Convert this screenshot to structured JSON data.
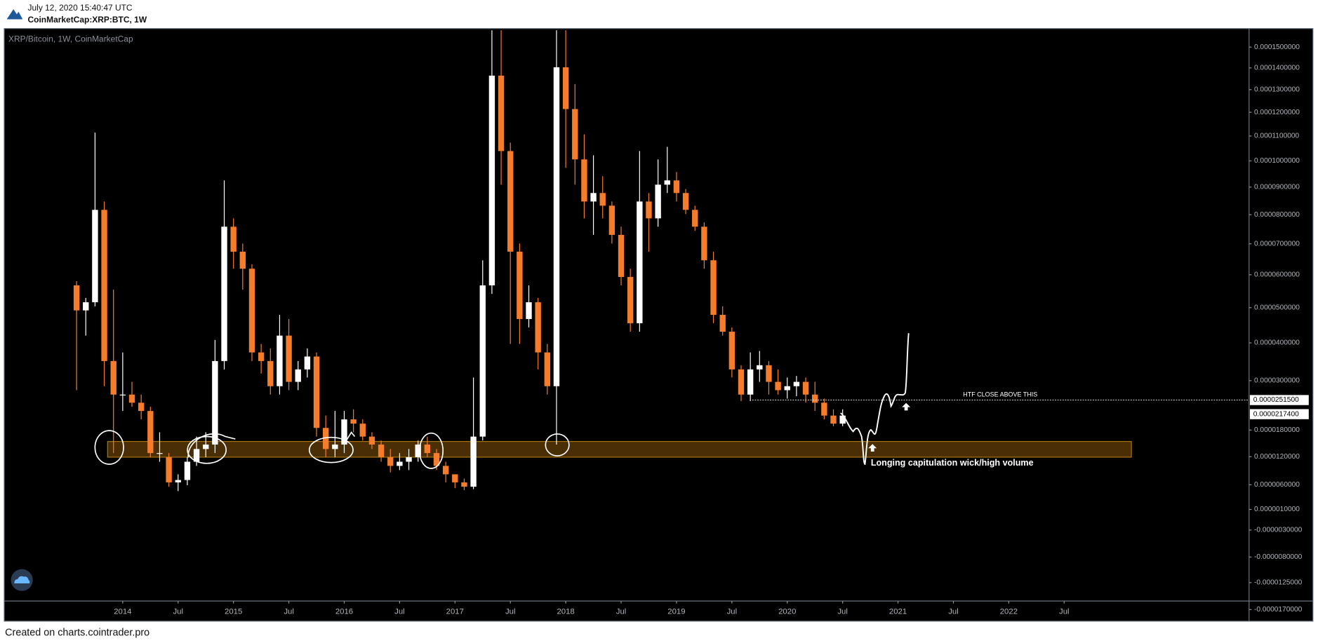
{
  "header": {
    "timestamp": "July 12, 2020 15:40:47 UTC",
    "symbol": "CoinMarketCap:XRP:BTC, 1W"
  },
  "chart_data": {
    "type": "candlestick",
    "title": "XRP/Bitcoin, 1W, CoinMarketCap",
    "x": [
      "2013-08",
      "2013-09",
      "2013-10",
      "2013-11",
      "2013-12",
      "2014-01",
      "2014-02",
      "2014-03",
      "2014-04",
      "2014-05",
      "2014-06",
      "2014-07",
      "2014-08",
      "2014-09",
      "2014-10",
      "2014-11",
      "2014-12",
      "2015-01",
      "2015-02",
      "2015-03",
      "2015-04",
      "2015-05",
      "2015-06",
      "2015-07",
      "2015-08",
      "2015-09",
      "2015-10",
      "2015-11",
      "2015-12",
      "2016-01",
      "2016-02",
      "2016-03",
      "2016-04",
      "2016-05",
      "2016-06",
      "2016-07",
      "2016-08",
      "2016-09",
      "2016-10",
      "2016-11",
      "2016-12",
      "2017-01",
      "2017-02",
      "2017-03",
      "2017-04",
      "2017-05",
      "2017-06",
      "2017-07",
      "2017-08",
      "2017-09",
      "2017-10",
      "2017-11",
      "2017-12",
      "2018-01",
      "2018-02",
      "2018-03",
      "2018-04",
      "2018-05",
      "2018-06",
      "2018-07",
      "2018-08",
      "2018-09",
      "2018-10",
      "2018-11",
      "2018-12",
      "2019-01",
      "2019-02",
      "2019-03",
      "2019-04",
      "2019-05",
      "2019-06",
      "2019-07",
      "2019-08",
      "2019-09",
      "2019-10",
      "2019-11",
      "2019-12",
      "2020-01",
      "2020-02",
      "2020-03",
      "2020-04",
      "2020-05",
      "2020-06",
      "2020-07"
    ],
    "open": [
      5.67e-05,
      4.92e-05,
      5.16e-05,
      8.17e-05,
      3.51e-05,
      2.65e-05,
      2.65e-05,
      2.45e-05,
      2.25e-05,
      1.28e-05,
      1.19e-05,
      6.5e-06,
      7e-06,
      1.09e-05,
      1.37e-05,
      1.47e-05,
      3.51e-05,
      7.58e-05,
      6.74e-05,
      6.19e-05,
      3.74e-05,
      3.51e-05,
      2.86e-05,
      4.2e-05,
      2.97e-05,
      3.29e-05,
      3.63e-05,
      1.85e-05,
      1.37e-05,
      1.47e-05,
      2.05e-05,
      1.95e-05,
      1.65e-05,
      1.47e-05,
      1.19e-05,
      1e-05,
      1.09e-05,
      1.19e-05,
      1.47e-05,
      1.28e-05,
      1e-05,
      8.2e-06,
      6.5e-06,
      5.6e-06,
      1.65e-05,
      5.67e-05,
      0.0001364,
      0.0001039,
      6.74e-05,
      4.67e-05,
      5.16e-05,
      3.74e-05,
      2.86e-05,
      0.0001403,
      0.0001214,
      0.0001006,
      8.47e-05,
      8.78e-05,
      8.32e-05,
      7.3e-05,
      5.93e-05,
      4.55e-05,
      8.47e-05,
      7.87e-05,
      9.09e-05,
      9.25e-05,
      8.78e-05,
      8.17e-05,
      7.58e-05,
      6.46e-05,
      4.79e-05,
      4.31e-05,
      3.29e-05,
      2.65e-05,
      3.29e-05,
      3.4e-05,
      2.97e-05,
      2.76e-05,
      2.86e-05,
      2.97e-05,
      2.65e-05,
      2.45e-05,
      2.14e-05,
      1.95e-05
    ],
    "high": [
      5.8e-05,
      5.29e-05,
      0.0001114,
      8.47e-05,
      5.54e-05,
      3.74e-05,
      2.97e-05,
      2.65e-05,
      2.35e-05,
      1.75e-05,
      1.28e-05,
      8.2e-06,
      1.19e-05,
      1.65e-05,
      1.75e-05,
      4.08e-05,
      9.25e-05,
      7.87e-05,
      7.01e-05,
      6.33e-05,
      3.97e-05,
      3.85e-05,
      4.79e-05,
      4.67e-05,
      3.51e-05,
      3.85e-05,
      3.74e-05,
      2.14e-05,
      2.25e-05,
      2.25e-05,
      2.29e-05,
      2.05e-05,
      1.75e-05,
      1.56e-05,
      1.37e-05,
      1.28e-05,
      1.37e-05,
      1.56e-05,
      1.65e-05,
      1.37e-05,
      1.09e-05,
      8.2e-06,
      7.3e-06,
      3.08e-05,
      6.46e-05,
      0.0001584,
      0.0001584,
      0.0001073,
      7.01e-05,
      5.67e-05,
      5.29e-05,
      3.97e-05,
      0.0001584,
      0.0001584,
      0.0001325,
      0.0001107,
      0.0001022,
      9.41e-05,
      8.47e-05,
      7.58e-05,
      6.19e-05,
      0.0001039,
      8.78e-05,
      0.0001006,
      0.0001056,
      9.57e-05,
      8.93e-05,
      8.32e-05,
      7.73e-05,
      6.74e-05,
      5.04e-05,
      4.43e-05,
      3.4e-05,
      3.74e-05,
      3.78e-05,
      3.51e-05,
      3.29e-05,
      3.08e-05,
      3.12e-05,
      3.08e-05,
      2.97e-05,
      2.55e-05,
      2.29e-05,
      2.29e-05
    ],
    "low": [
      2.76e-05,
      4.2e-05,
      5.04e-05,
      2.86e-05,
      1.28e-05,
      2.25e-05,
      2.35e-05,
      2.05e-05,
      1.19e-05,
      1.09e-05,
      5.6e-06,
      4.7e-06,
      5.9e-06,
      1e-05,
      1.19e-05,
      1.28e-05,
      3.29e-05,
      6.19e-05,
      5.54e-05,
      3.51e-05,
      3.18e-05,
      2.65e-05,
      2.65e-05,
      2.76e-05,
      2.76e-05,
      3.08e-05,
      1.65e-05,
      1.19e-05,
      1.19e-05,
      1.28e-05,
      1.75e-05,
      1.56e-05,
      1.37e-05,
      1.09e-05,
      8.6e-06,
      9.1e-06,
      9.1e-06,
      1.09e-05,
      1.19e-05,
      9.1e-06,
      6.5e-06,
      5.3e-06,
      4.9e-06,
      5.1e-06,
      1.56e-05,
      5.41e-05,
      9.09e-05,
      3.97e-05,
      3.97e-05,
      4.43e-05,
      3.29e-05,
      2.65e-05,
      1.47e-05,
      9.73e-05,
      9.09e-05,
      7.87e-05,
      7.3e-05,
      7.87e-05,
      7.01e-05,
      5.67e-05,
      4.31e-05,
      4.31e-05,
      6.74e-05,
      7.58e-05,
      8.78e-05,
      8.47e-05,
      8.02e-05,
      7.44e-05,
      6.19e-05,
      4.55e-05,
      4.2e-05,
      3.08e-05,
      2.49e-05,
      2.49e-05,
      2.97e-05,
      2.65e-05,
      2.65e-05,
      2.55e-05,
      2.61e-05,
      2.45e-05,
      2.25e-05,
      2.05e-05,
      1.89e-05,
      1.89e-05
    ],
    "close": [
      4.92e-05,
      5.16e-05,
      8.17e-05,
      3.51e-05,
      2.65e-05,
      2.65e-05,
      2.45e-05,
      2.25e-05,
      1.28e-05,
      1.28e-05,
      6.5e-06,
      7e-06,
      1.09e-05,
      1.37e-05,
      1.47e-05,
      3.51e-05,
      7.58e-05,
      6.74e-05,
      6.19e-05,
      3.74e-05,
      3.51e-05,
      2.86e-05,
      4.2e-05,
      2.97e-05,
      3.29e-05,
      3.63e-05,
      1.85e-05,
      1.37e-05,
      1.47e-05,
      2.05e-05,
      1.95e-05,
      1.65e-05,
      1.47e-05,
      1.19e-05,
      1e-05,
      1.09e-05,
      1.19e-05,
      1.47e-05,
      1.28e-05,
      1e-05,
      8.2e-06,
      6.5e-06,
      5.6e-06,
      1.65e-05,
      5.67e-05,
      0.0001364,
      0.0001039,
      6.74e-05,
      4.67e-05,
      5.16e-05,
      3.74e-05,
      2.86e-05,
      0.0001403,
      0.0001214,
      0.0001006,
      8.47e-05,
      8.78e-05,
      8.32e-05,
      7.3e-05,
      5.93e-05,
      4.55e-05,
      8.47e-05,
      7.87e-05,
      9.09e-05,
      9.25e-05,
      8.78e-05,
      8.17e-05,
      7.58e-05,
      6.46e-05,
      4.79e-05,
      4.31e-05,
      3.29e-05,
      2.65e-05,
      3.29e-05,
      3.4e-05,
      2.97e-05,
      2.76e-05,
      2.86e-05,
      2.97e-05,
      2.65e-05,
      2.45e-05,
      2.14e-05,
      1.95e-05,
      2.14e-05
    ],
    "up_color": "#ffffff",
    "down_color": "#f57c2a",
    "log_scale": true,
    "ylim": [
      -1.56e-05,
      0.0001584
    ],
    "yticks": [
      {
        "value": 0.00015,
        "label": "0.0001500000"
      },
      {
        "value": 0.00014,
        "label": "0.0001400000"
      },
      {
        "value": 0.00013,
        "label": "0.0001300000"
      },
      {
        "value": 0.00012,
        "label": "0.0001200000"
      },
      {
        "value": 0.00011,
        "label": "0.0001100000"
      },
      {
        "value": 0.0001,
        "label": "0.0001000000"
      },
      {
        "value": 9e-05,
        "label": "0.0000900000"
      },
      {
        "value": 8e-05,
        "label": "0.0000800000"
      },
      {
        "value": 7e-05,
        "label": "0.0000700000"
      },
      {
        "value": 6e-05,
        "label": "0.0000600000"
      },
      {
        "value": 5e-05,
        "label": "0.0000500000"
      },
      {
        "value": 4e-05,
        "label": "0.0000400000"
      },
      {
        "value": 3e-05,
        "label": "0.0000300000"
      },
      {
        "value": 1.8e-05,
        "label": "0.0000180000"
      },
      {
        "value": 1.2e-05,
        "label": "0.0000120000"
      },
      {
        "value": 6e-06,
        "label": "0.0000060000"
      },
      {
        "value": 1e-06,
        "label": "0.0000010000"
      },
      {
        "value": -3e-06,
        "label": "-0.0000030000"
      },
      {
        "value": -8e-06,
        "label": "-0.0000080000"
      },
      {
        "value": -1.25e-05,
        "label": "-0.0000125000"
      },
      {
        "value": -1.7e-05,
        "label": "-0.0000170000"
      }
    ],
    "xticks": [
      {
        "value": "2014-01",
        "label": "2014"
      },
      {
        "value": "2014-07",
        "label": "Jul"
      },
      {
        "value": "2015-01",
        "label": "2015"
      },
      {
        "value": "2015-07",
        "label": "Jul"
      },
      {
        "value": "2016-01",
        "label": "2016"
      },
      {
        "value": "2016-07",
        "label": "Jul"
      },
      {
        "value": "2017-01",
        "label": "2017"
      },
      {
        "value": "2017-07",
        "label": "Jul"
      },
      {
        "value": "2018-01",
        "label": "2018"
      },
      {
        "value": "2018-07",
        "label": "Jul"
      },
      {
        "value": "2019-01",
        "label": "2019"
      },
      {
        "value": "2019-07",
        "label": "Jul"
      },
      {
        "value": "2020-01",
        "label": "2020"
      },
      {
        "value": "2020-07",
        "label": "Jul"
      },
      {
        "value": "2021-01",
        "label": "2021"
      },
      {
        "value": "2021-07",
        "label": "Jul"
      },
      {
        "value": "2022-01",
        "label": "2022"
      },
      {
        "value": "2022-07",
        "label": "Jul"
      }
    ],
    "level_line": {
      "value": 2.515e-05,
      "label": "0.0000251500",
      "text": "HTF CLOSE ABOVE THIS"
    },
    "last_price": {
      "value": 2.174e-05,
      "label": "0.0000217400"
    },
    "support_zone": {
      "ylim": [
        1.19e-05,
        1.54e-05
      ],
      "color": "#4a2e05",
      "text": "Longing capitulation wick/high volume"
    }
  },
  "footer": "Created on charts.cointrader.pro"
}
